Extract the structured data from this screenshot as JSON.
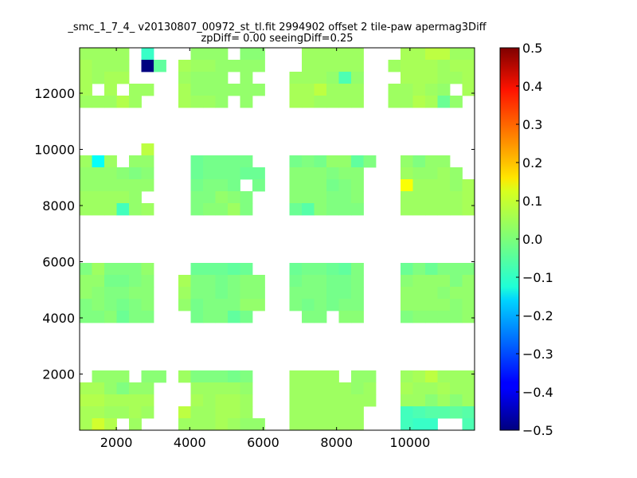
{
  "chart_data": {
    "type": "heatmap",
    "title": "_smc_1_7_4_ v20130807_00972_st_tl.fit 2994902 offset 2 tile-paw apermag3Diff",
    "subtitle": "zpDiff= 0.00 seeingDiff=0.25",
    "xlabel": "",
    "ylabel": "",
    "xlim": [
      1000,
      11760
    ],
    "ylim": [
      0,
      13617
    ],
    "xticks": [
      "2000",
      "4000",
      "6000",
      "8000",
      "10000"
    ],
    "yticks": [
      "2000",
      "4000",
      "6000",
      "8000",
      "10000",
      "12000"
    ],
    "colormap": "jet",
    "clim": [
      -0.5,
      0.5
    ],
    "colorbar_ticks": [
      "0.5",
      "0.4",
      "0.3",
      "0.2",
      "0.1",
      "0.0",
      "−0.1",
      "−0.2",
      "−0.3",
      "−0.4",
      "−0.5"
    ],
    "grid": false,
    "row_order": "top-to-bottom",
    "z": [
      [
        0.03,
        0.03,
        0.03,
        0.03,
        null,
        -0.07,
        null,
        null,
        null,
        0.02,
        0.02,
        0.02,
        null,
        0.01,
        0.01,
        null,
        null,
        null,
        0.03,
        0.03,
        0.03,
        0.03,
        0.03,
        null,
        null,
        null,
        0.04,
        0.04,
        0.06,
        0.06,
        0.03,
        0.03
      ],
      [
        0.04,
        0.03,
        0.03,
        0.03,
        null,
        -0.5,
        -0.03,
        null,
        0.04,
        0.03,
        0.03,
        0.02,
        0.02,
        0.02,
        0.02,
        null,
        null,
        null,
        0.03,
        0.03,
        0.03,
        0.03,
        0.03,
        null,
        null,
        0.03,
        0.04,
        0.04,
        0.04,
        0.03,
        0.04,
        0.04
      ],
      [
        0.04,
        0.03,
        0.04,
        0.04,
        null,
        null,
        null,
        null,
        0.03,
        0.02,
        0.02,
        0.02,
        null,
        0.02,
        null,
        null,
        null,
        0.03,
        0.03,
        0.03,
        0.02,
        -0.05,
        0.02,
        null,
        null,
        null,
        0.04,
        0.04,
        0.04,
        0.03,
        0.03,
        0.04
      ],
      [
        0.04,
        null,
        0.04,
        null,
        0.03,
        0.03,
        null,
        null,
        0.04,
        0.02,
        0.02,
        0.02,
        0.02,
        0.02,
        0.02,
        null,
        null,
        0.04,
        0.04,
        0.06,
        0.03,
        0.03,
        0.03,
        null,
        null,
        0.03,
        0.03,
        0.04,
        0.03,
        0.02,
        null,
        0.04
      ],
      [
        0.03,
        0.03,
        0.03,
        0.05,
        0.03,
        null,
        null,
        null,
        0.04,
        0.03,
        0.03,
        0.02,
        null,
        0.02,
        null,
        null,
        null,
        0.04,
        0.04,
        0.03,
        0.03,
        0.03,
        0.03,
        null,
        null,
        0.03,
        0.03,
        0.05,
        0.04,
        -0.02,
        0.02,
        null
      ],
      [
        null,
        null,
        null,
        null,
        null,
        null,
        null,
        null,
        null,
        null,
        null,
        null,
        null,
        null,
        null,
        null,
        null,
        null,
        null,
        null,
        null,
        null,
        null,
        null,
        null,
        null,
        null,
        null,
        null,
        null,
        null,
        null
      ],
      [
        null,
        null,
        null,
        null,
        null,
        null,
        null,
        null,
        null,
        null,
        null,
        null,
        null,
        null,
        null,
        null,
        null,
        null,
        null,
        null,
        null,
        null,
        null,
        null,
        null,
        null,
        null,
        null,
        null,
        null,
        null,
        null
      ],
      [
        null,
        null,
        null,
        null,
        null,
        null,
        null,
        null,
        null,
        null,
        null,
        null,
        null,
        null,
        null,
        null,
        null,
        null,
        null,
        null,
        null,
        null,
        null,
        null,
        null,
        null,
        null,
        null,
        null,
        null,
        null,
        null
      ],
      [
        null,
        null,
        null,
        null,
        null,
        0.06,
        null,
        null,
        null,
        null,
        null,
        null,
        null,
        null,
        null,
        null,
        null,
        null,
        null,
        null,
        null,
        null,
        null,
        null,
        null,
        null,
        null,
        null,
        null,
        null,
        null,
        null
      ],
      [
        0.03,
        -0.12,
        0.03,
        null,
        0.02,
        0.02,
        null,
        null,
        null,
        -0.02,
        -0.01,
        -0.01,
        -0.01,
        -0.01,
        null,
        null,
        null,
        -0.01,
        0.0,
        -0.01,
        0.02,
        0.02,
        -0.03,
        0.0,
        null,
        null,
        0.02,
        0.0,
        0.02,
        0.02,
        null,
        null
      ],
      [
        0.02,
        0.02,
        0.02,
        0.01,
        0.0,
        0.01,
        null,
        null,
        null,
        -0.02,
        -0.01,
        -0.01,
        -0.01,
        -0.02,
        -0.02,
        null,
        null,
        0.01,
        0.01,
        0.01,
        0.0,
        0.01,
        0.01,
        null,
        null,
        null,
        0.03,
        0.02,
        0.02,
        0.03,
        0.02,
        null
      ],
      [
        0.02,
        0.02,
        0.02,
        0.02,
        0.02,
        0.02,
        null,
        null,
        null,
        -0.01,
        0.0,
        0.0,
        -0.01,
        null,
        -0.01,
        null,
        null,
        0.01,
        0.01,
        0.01,
        -0.01,
        0.0,
        0.01,
        null,
        null,
        null,
        0.12,
        0.03,
        0.03,
        0.03,
        0.02,
        0.04
      ],
      [
        0.03,
        0.03,
        0.03,
        0.03,
        0.02,
        null,
        null,
        null,
        null,
        0.0,
        0.0,
        0.02,
        0.01,
        0.0,
        null,
        null,
        null,
        0.01,
        0.01,
        0.01,
        0.0,
        0.0,
        0.01,
        null,
        null,
        null,
        0.03,
        0.03,
        0.03,
        0.03,
        0.03,
        0.04
      ],
      [
        0.03,
        0.03,
        0.03,
        -0.06,
        0.02,
        0.03,
        null,
        null,
        null,
        0.0,
        0.01,
        0.01,
        0.03,
        0.0,
        null,
        null,
        null,
        -0.02,
        -0.04,
        0.01,
        0.0,
        0.0,
        0.0,
        null,
        null,
        null,
        0.03,
        0.03,
        0.03,
        0.03,
        0.03,
        0.04
      ],
      [
        null,
        null,
        null,
        null,
        null,
        null,
        null,
        null,
        null,
        null,
        null,
        null,
        null,
        null,
        null,
        null,
        null,
        null,
        null,
        null,
        null,
        null,
        null,
        null,
        null,
        null,
        null,
        null,
        null,
        null,
        null,
        null
      ],
      [
        null,
        null,
        null,
        null,
        null,
        null,
        null,
        null,
        null,
        null,
        null,
        null,
        null,
        null,
        null,
        null,
        null,
        null,
        null,
        null,
        null,
        null,
        null,
        null,
        null,
        null,
        null,
        null,
        null,
        null,
        null,
        null
      ],
      [
        null,
        null,
        null,
        null,
        null,
        null,
        null,
        null,
        null,
        null,
        null,
        null,
        null,
        null,
        null,
        null,
        null,
        null,
        null,
        null,
        null,
        null,
        null,
        null,
        null,
        null,
        null,
        null,
        null,
        null,
        null,
        null
      ],
      [
        null,
        null,
        null,
        null,
        null,
        null,
        null,
        null,
        null,
        null,
        null,
        null,
        null,
        null,
        null,
        null,
        null,
        null,
        null,
        null,
        null,
        null,
        null,
        null,
        null,
        null,
        null,
        null,
        null,
        null,
        null,
        null
      ],
      [
        0.0,
        0.03,
        0.0,
        0.0,
        0.0,
        0.02,
        null,
        null,
        null,
        -0.02,
        -0.02,
        -0.02,
        -0.03,
        -0.02,
        null,
        null,
        null,
        -0.02,
        -0.01,
        -0.01,
        -0.02,
        -0.03,
        0.0,
        null,
        null,
        null,
        -0.02,
        0.0,
        -0.02,
        0.0,
        0.0,
        0.0
      ],
      [
        0.02,
        0.02,
        -0.01,
        -0.01,
        0.0,
        0.01,
        null,
        null,
        0.04,
        0.0,
        0.0,
        -0.01,
        0.0,
        0.01,
        0.01,
        null,
        null,
        -0.01,
        0.0,
        0.0,
        -0.01,
        -0.01,
        0.0,
        null,
        null,
        null,
        0.01,
        0.02,
        0.02,
        0.02,
        0.0,
        0.02
      ],
      [
        0.02,
        0.01,
        0.0,
        0.0,
        0.01,
        0.01,
        null,
        null,
        0.03,
        0.0,
        0.0,
        -0.01,
        0.0,
        0.01,
        0.01,
        null,
        null,
        0.0,
        0.0,
        0.0,
        -0.01,
        -0.01,
        0.0,
        null,
        null,
        null,
        0.02,
        0.02,
        0.02,
        0.01,
        0.02,
        0.02
      ],
      [
        0.0,
        0.01,
        0.0,
        -0.01,
        0.0,
        0.01,
        null,
        null,
        0.02,
        -0.01,
        0.0,
        0.0,
        0.0,
        0.02,
        0.02,
        null,
        null,
        0.0,
        -0.01,
        0.0,
        -0.01,
        0.0,
        0.0,
        null,
        null,
        null,
        0.02,
        0.02,
        0.02,
        0.02,
        0.01,
        0.02
      ],
      [
        0.0,
        0.0,
        0.01,
        -0.02,
        0.0,
        0.0,
        null,
        null,
        null,
        -0.01,
        0.0,
        0.0,
        -0.03,
        -0.01,
        null,
        null,
        null,
        null,
        0.0,
        0.0,
        null,
        0.01,
        0.01,
        null,
        null,
        null,
        0.0,
        0.01,
        0.01,
        0.01,
        0.01,
        0.02
      ],
      [
        null,
        null,
        null,
        null,
        null,
        null,
        null,
        null,
        null,
        null,
        null,
        null,
        null,
        null,
        null,
        null,
        null,
        null,
        null,
        null,
        null,
        null,
        null,
        null,
        null,
        null,
        null,
        null,
        null,
        null,
        null,
        null
      ],
      [
        null,
        null,
        null,
        null,
        null,
        null,
        null,
        null,
        null,
        null,
        null,
        null,
        null,
        null,
        null,
        null,
        null,
        null,
        null,
        null,
        null,
        null,
        null,
        null,
        null,
        null,
        null,
        null,
        null,
        null,
        null,
        null
      ],
      [
        null,
        null,
        null,
        null,
        null,
        null,
        null,
        null,
        null,
        null,
        null,
        null,
        null,
        null,
        null,
        null,
        null,
        null,
        null,
        null,
        null,
        null,
        null,
        null,
        null,
        null,
        null,
        null,
        null,
        null,
        null,
        null
      ],
      [
        null,
        null,
        null,
        null,
        null,
        null,
        null,
        null,
        null,
        null,
        null,
        null,
        null,
        null,
        null,
        null,
        null,
        null,
        null,
        null,
        null,
        null,
        null,
        null,
        null,
        null,
        null,
        null,
        null,
        null,
        null,
        null
      ],
      [
        null,
        0.02,
        0.02,
        0.02,
        null,
        0.01,
        0.01,
        null,
        0.03,
        0.0,
        0.0,
        0.0,
        -0.01,
        0.0,
        null,
        null,
        null,
        0.03,
        0.03,
        0.03,
        0.03,
        null,
        0.02,
        0.02,
        null,
        null,
        0.03,
        0.04,
        0.06,
        0.03,
        0.03,
        0.03
      ],
      [
        0.04,
        0.04,
        0.02,
        0.0,
        0.02,
        0.02,
        null,
        null,
        null,
        0.03,
        0.03,
        0.03,
        0.03,
        0.02,
        null,
        null,
        null,
        0.03,
        0.03,
        0.03,
        0.03,
        0.03,
        0.02,
        0.03,
        null,
        null,
        0.04,
        0.03,
        0.03,
        0.04,
        0.03,
        0.03
      ],
      [
        0.05,
        0.05,
        0.04,
        0.04,
        0.04,
        0.04,
        null,
        null,
        null,
        0.04,
        0.03,
        0.04,
        0.04,
        0.03,
        null,
        null,
        null,
        0.03,
        0.03,
        0.03,
        0.03,
        0.03,
        0.03,
        0.03,
        null,
        null,
        0.03,
        0.03,
        0.01,
        0.03,
        0.01,
        0.03
      ],
      [
        0.04,
        0.04,
        0.03,
        0.03,
        0.04,
        0.03,
        null,
        null,
        0.06,
        0.03,
        0.03,
        0.04,
        0.04,
        0.03,
        null,
        null,
        null,
        0.03,
        0.03,
        0.03,
        0.03,
        0.03,
        0.03,
        null,
        null,
        null,
        -0.06,
        -0.05,
        -0.04,
        -0.04,
        -0.03,
        -0.04
      ],
      [
        0.04,
        0.08,
        0.05,
        null,
        0.03,
        null,
        null,
        null,
        0.03,
        0.03,
        0.03,
        0.04,
        0.03,
        0.02,
        0.02,
        null,
        null,
        0.03,
        0.03,
        0.03,
        0.03,
        0.03,
        0.03,
        null,
        null,
        null,
        -0.06,
        -0.07,
        -0.07,
        null,
        null,
        -0.05
      ]
    ]
  }
}
